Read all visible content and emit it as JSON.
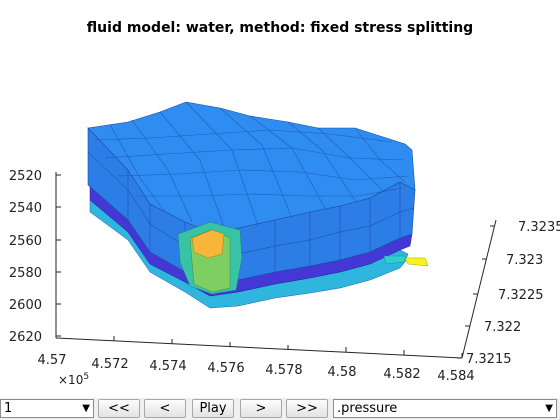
{
  "title": "fluid model: water, method: fixed stress splitting",
  "axes": {
    "z_ticks": [
      "2520",
      "2540",
      "2560",
      "2580",
      "2600",
      "2620"
    ],
    "x_ticks": [
      "4.57",
      "4.572",
      "4.574",
      "4.576",
      "4.578",
      "4.58",
      "4.582",
      "4.584"
    ],
    "x_exponent_base": "×10",
    "x_exponent_power": "5",
    "y_ticks": [
      "7.3215",
      "7.322",
      "7.3225",
      "7.323",
      "7.3235"
    ]
  },
  "model": {
    "colormap": "parula",
    "colors": {
      "top": "#2f8cf0",
      "side_front": "#2c7de6",
      "side_left": "#3a96ef",
      "band_dark": "#4338d6",
      "band_light": "#2fb6de",
      "highlight_teal": "#38c2a6",
      "highlight_green": "#7dcf62",
      "highlight_orange": "#f6b63a",
      "highlight_yellow": "#f9f21c"
    }
  },
  "controls": {
    "step_select_value": "1",
    "rewind_label": "<<",
    "back_label": "<",
    "play_label": "Play",
    "forward_label": ">",
    "fast_forward_label": ">>",
    "field_select_value": ".pressure"
  }
}
